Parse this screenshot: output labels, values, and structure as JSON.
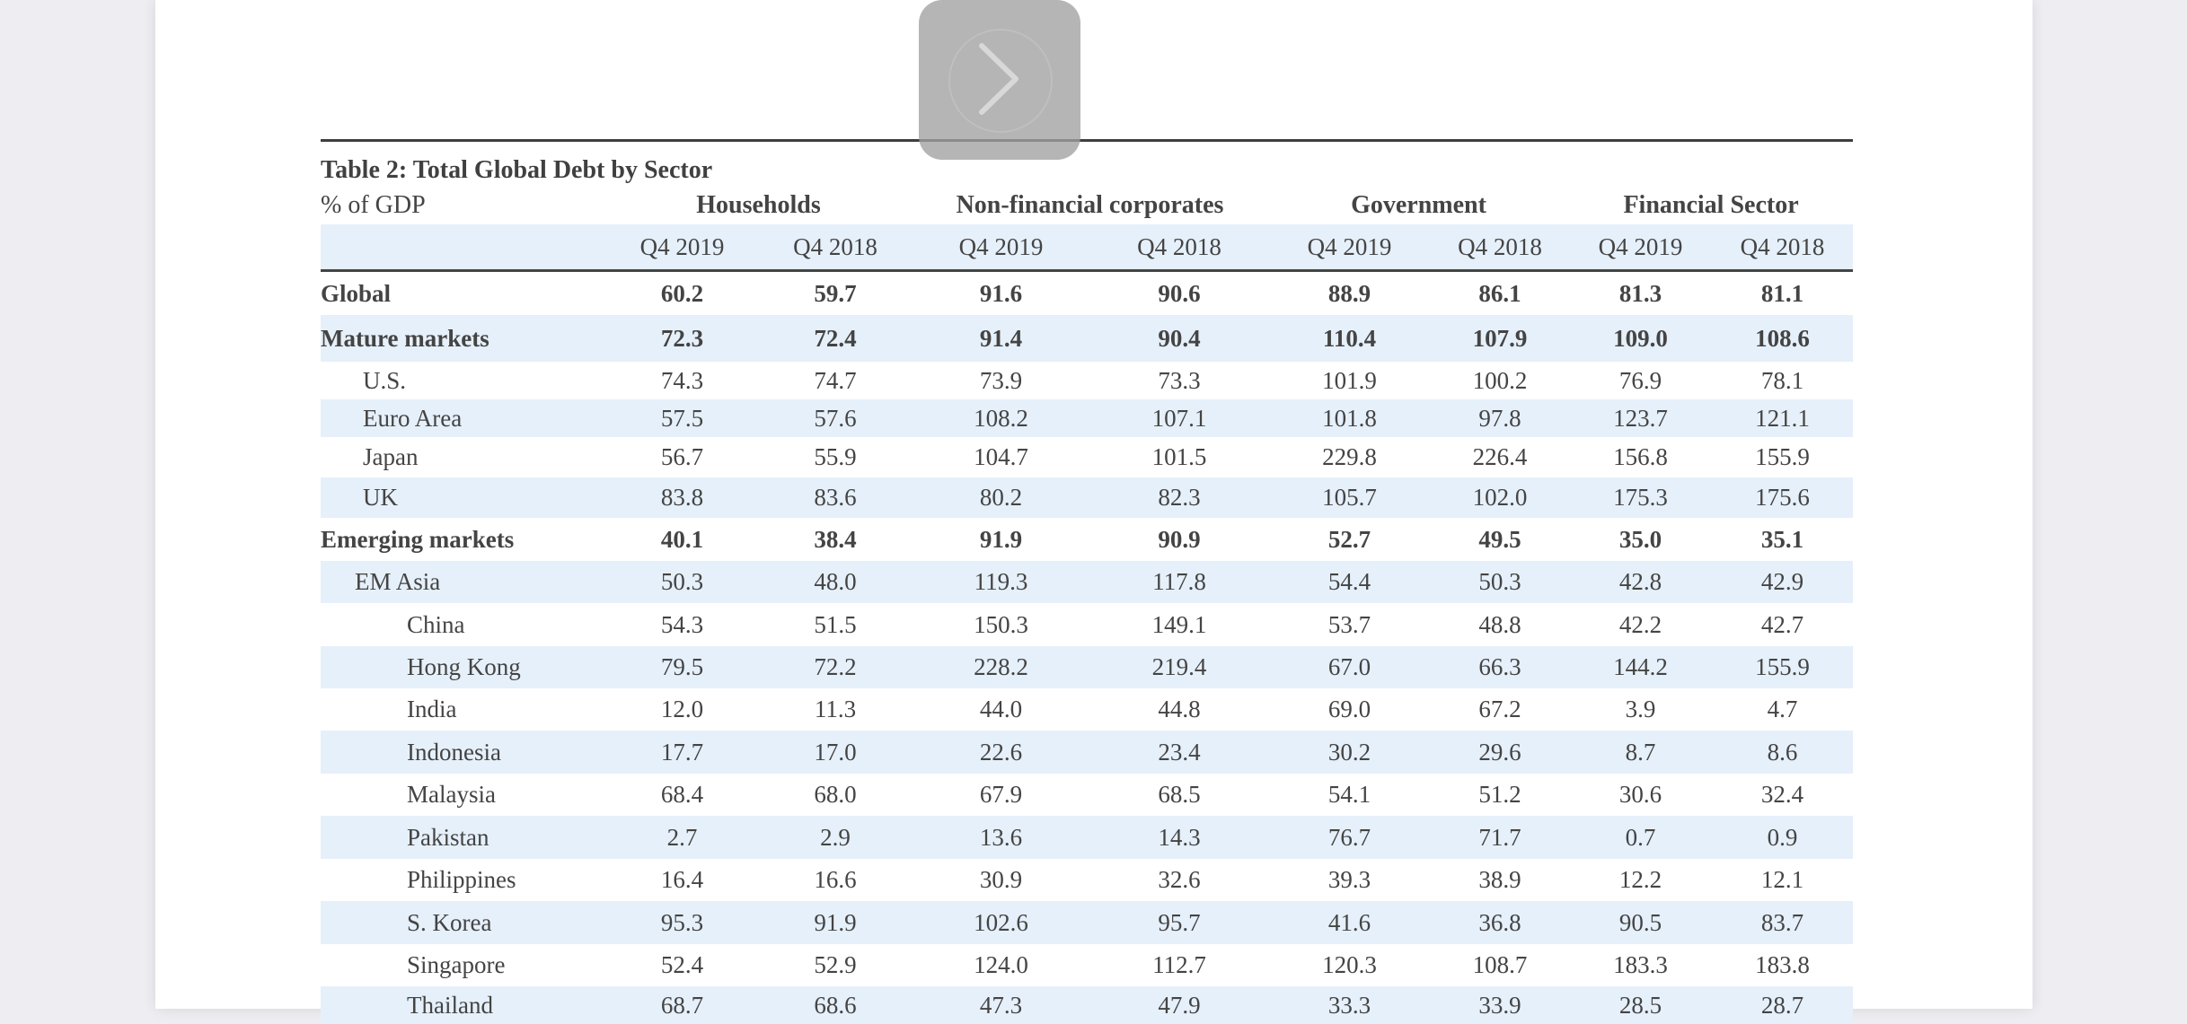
{
  "table": {
    "title": "Table 2:  Total Global Debt by Sector",
    "unit_label": "% of GDP",
    "groups": [
      "Households",
      "Non-financial corporates",
      "Government",
      "Financial Sector"
    ],
    "periods": [
      "Q4 2019",
      "Q4 2018",
      "Q4 2019",
      "Q4 2018",
      "Q4 2019",
      "Q4 2018",
      "Q4 2019",
      "Q4 2018"
    ],
    "rows": [
      {
        "label": "Global",
        "values": [
          "60.2",
          "59.7",
          "91.6",
          "90.6",
          "88.9",
          "86.1",
          "81.3",
          "81.1"
        ]
      },
      {
        "label": "Mature markets",
        "values": [
          "72.3",
          "72.4",
          "91.4",
          "90.4",
          "110.4",
          "107.9",
          "109.0",
          "108.6"
        ]
      },
      {
        "label": "U.S.",
        "values": [
          "74.3",
          "74.7",
          "73.9",
          "73.3",
          "101.9",
          "100.2",
          "76.9",
          "78.1"
        ]
      },
      {
        "label": "Euro Area",
        "values": [
          "57.5",
          "57.6",
          "108.2",
          "107.1",
          "101.8",
          "97.8",
          "123.7",
          "121.1"
        ]
      },
      {
        "label": "Japan",
        "values": [
          "56.7",
          "55.9",
          "104.7",
          "101.5",
          "229.8",
          "226.4",
          "156.8",
          "155.9"
        ]
      },
      {
        "label": "UK",
        "values": [
          "83.8",
          "83.6",
          "80.2",
          "82.3",
          "105.7",
          "102.0",
          "175.3",
          "175.6"
        ]
      },
      {
        "label": "Emerging markets",
        "values": [
          "40.1",
          "38.4",
          "91.9",
          "90.9",
          "52.7",
          "49.5",
          "35.0",
          "35.1"
        ]
      },
      {
        "label": "EM Asia",
        "values": [
          "50.3",
          "48.0",
          "119.3",
          "117.8",
          "54.4",
          "50.3",
          "42.8",
          "42.9"
        ]
      },
      {
        "label": "China",
        "values": [
          "54.3",
          "51.5",
          "150.3",
          "149.1",
          "53.7",
          "48.8",
          "42.2",
          "42.7"
        ]
      },
      {
        "label": "Hong Kong",
        "values": [
          "79.5",
          "72.2",
          "228.2",
          "219.4",
          "67.0",
          "66.3",
          "144.2",
          "155.9"
        ]
      },
      {
        "label": "India",
        "values": [
          "12.0",
          "11.3",
          "44.0",
          "44.8",
          "69.0",
          "67.2",
          "3.9",
          "4.7"
        ]
      },
      {
        "label": "Indonesia",
        "values": [
          "17.7",
          "17.0",
          "22.6",
          "23.4",
          "30.2",
          "29.6",
          "8.7",
          "8.6"
        ]
      },
      {
        "label": "Malaysia",
        "values": [
          "68.4",
          "68.0",
          "67.9",
          "68.5",
          "54.1",
          "51.2",
          "30.6",
          "32.4"
        ]
      },
      {
        "label": "Pakistan",
        "values": [
          "2.7",
          "2.9",
          "13.6",
          "14.3",
          "76.7",
          "71.7",
          "0.7",
          "0.9"
        ]
      },
      {
        "label": "Philippines",
        "values": [
          "16.4",
          "16.6",
          "30.9",
          "32.6",
          "39.3",
          "38.9",
          "12.2",
          "12.1"
        ]
      },
      {
        "label": "S. Korea",
        "values": [
          "95.3",
          "91.9",
          "102.6",
          "95.7",
          "41.6",
          "36.8",
          "90.5",
          "83.7"
        ]
      },
      {
        "label": "Singapore",
        "values": [
          "52.4",
          "52.9",
          "124.0",
          "112.7",
          "120.3",
          "108.7",
          "183.3",
          "183.8"
        ]
      },
      {
        "label": "Thailand",
        "values": [
          "68.7",
          "68.6",
          "47.3",
          "47.9",
          "33.3",
          "33.9",
          "28.5",
          "28.7"
        ]
      }
    ]
  },
  "overlay": {
    "icon": "chevron-right-icon"
  },
  "colors": {
    "row_shade": "#e6f0fa",
    "text": "#444444",
    "page_bg": "#ffffff",
    "viewer_bg": "#eeeef2"
  }
}
